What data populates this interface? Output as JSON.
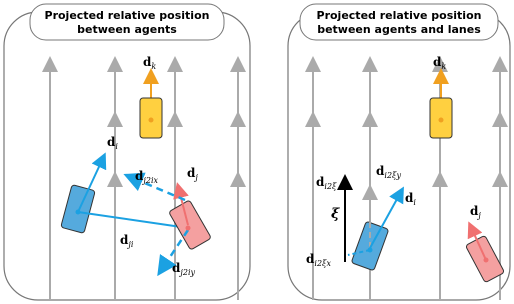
{
  "left_panel": {
    "title": [
      "Projected relative position",
      "between agents"
    ],
    "labels": {
      "d_k": {
        "base": "d",
        "sub": "k"
      },
      "d_i": {
        "base": "d",
        "sub": "i"
      },
      "d_j": {
        "base": "d",
        "sub": "j"
      },
      "d_j2ix": {
        "base": "d",
        "sub": "j2ix"
      },
      "d_ji": {
        "base": "d",
        "sub": "ji"
      },
      "d_j2iy": {
        "base": "d",
        "sub": "j2iy"
      }
    }
  },
  "right_panel": {
    "title": [
      "Projected relative position",
      "between agents and lanes"
    ],
    "labels": {
      "d_k": {
        "base": "d",
        "sub": "k"
      },
      "d_i2xi": {
        "base": "d",
        "sub": "i2ξ"
      },
      "d_i2xiy": {
        "base": "d",
        "sub": "i2ξy"
      },
      "d_i": {
        "base": "d",
        "sub": "i"
      },
      "xi": {
        "base": "ξ"
      },
      "d_j": {
        "base": "d",
        "sub": "j"
      },
      "d_i2xix": {
        "base": "d",
        "sub": "i2ξx"
      }
    }
  }
}
